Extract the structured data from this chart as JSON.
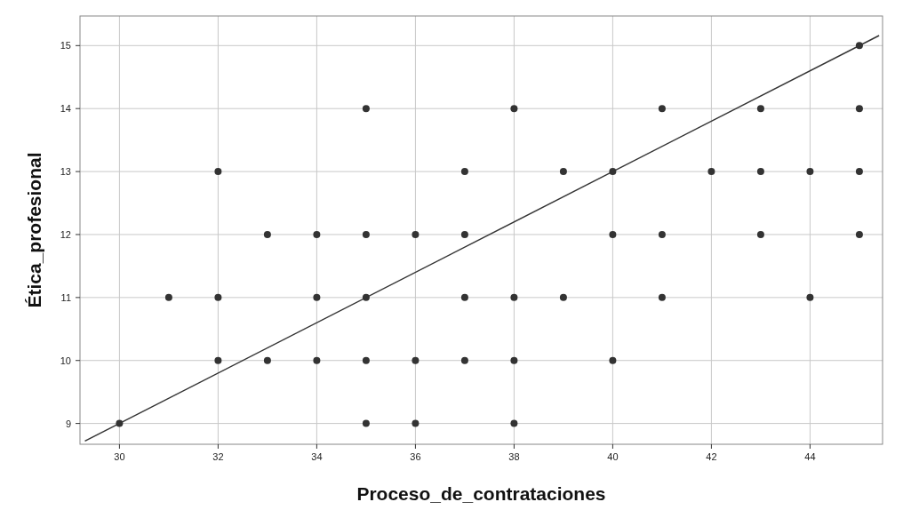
{
  "chart_data": {
    "type": "scatter",
    "xlabel": "Proceso_de_contrataciones",
    "ylabel": "Ética_profesional",
    "xlim": [
      29.2,
      45.47
    ],
    "ylim": [
      8.67,
      15.47
    ],
    "xticks": [
      30,
      32,
      34,
      36,
      38,
      40,
      42,
      44
    ],
    "yticks": [
      9,
      10,
      11,
      12,
      13,
      14,
      15
    ],
    "grid": true,
    "marker": "circle",
    "series": [
      {
        "color": "#333333",
        "x": [
          45,
          35,
          38,
          41,
          43,
          45,
          32,
          37,
          39,
          40,
          42,
          43,
          44,
          45,
          33,
          34,
          35,
          36,
          37,
          40,
          41,
          43,
          45,
          31,
          32,
          34,
          35,
          37,
          38,
          39,
          41,
          44,
          32,
          33,
          34,
          35,
          36,
          37,
          38,
          40,
          30,
          35,
          36,
          38
        ],
        "values": [
          15,
          14,
          14,
          14,
          14,
          14,
          13,
          13,
          13,
          13,
          13,
          13,
          13,
          13,
          12,
          12,
          12,
          12,
          12,
          12,
          12,
          12,
          12,
          11,
          11,
          11,
          11,
          11,
          11,
          11,
          11,
          11,
          10,
          10,
          10,
          10,
          10,
          10,
          10,
          10,
          9,
          9,
          9,
          9
        ]
      },
      {
        "type": "line",
        "marker": "none",
        "color": "#333333",
        "x": [
          29.3,
          45.4
        ],
        "values": [
          8.72,
          15.16
        ]
      }
    ]
  }
}
